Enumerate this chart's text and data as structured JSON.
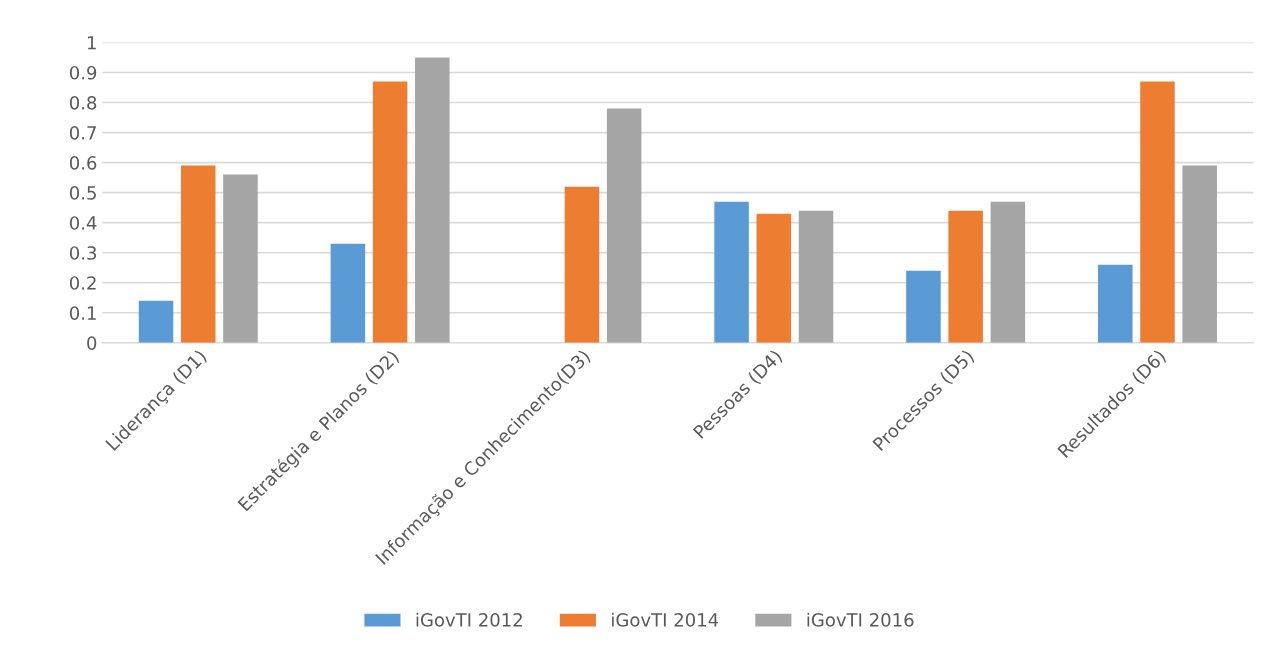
{
  "chart_data": {
    "type": "bar",
    "categories": [
      "Liderança (D1)",
      "Estratégia e Planos (D2)",
      "Informação e Conhecimento(D3)",
      "Pessoas (D4)",
      "Processos (D5)",
      "Resultados (D6)"
    ],
    "series": [
      {
        "name": "iGovTI 2012",
        "color": "#5b9bd5",
        "values": [
          0.14,
          0.33,
          null,
          0.47,
          0.24,
          0.26
        ]
      },
      {
        "name": "iGovTI 2014",
        "color": "#ed7d31",
        "values": [
          0.59,
          0.87,
          0.52,
          0.43,
          0.44,
          0.87
        ]
      },
      {
        "name": "iGovTI 2016",
        "color": "#a5a5a5",
        "values": [
          0.56,
          0.95,
          0.78,
          0.44,
          0.47,
          0.59
        ]
      }
    ],
    "ylim": [
      0,
      1
    ],
    "yticks": [
      0,
      0.1,
      0.2,
      0.3,
      0.4,
      0.5,
      0.6,
      0.7,
      0.8,
      0.9,
      1
    ],
    "grid": "y",
    "legend": "bottom"
  }
}
